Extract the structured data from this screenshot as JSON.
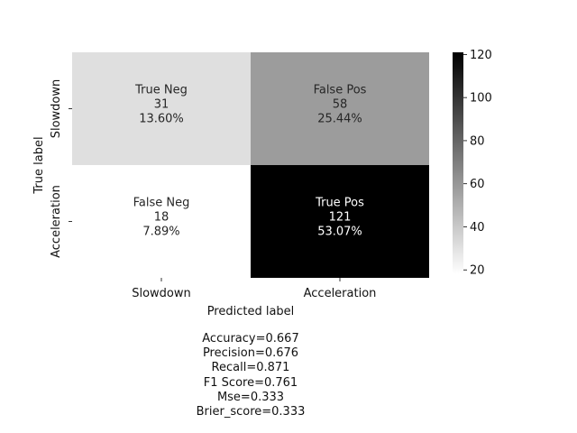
{
  "chart_data": {
    "type": "heatmap",
    "x_categories": [
      "Slowdown",
      "Acceleration"
    ],
    "y_categories": [
      "Slowdown",
      "Acceleration"
    ],
    "cells": [
      [
        {
          "label": "True Neg",
          "value": 31,
          "percent": "13.60%"
        },
        {
          "label": "False Pos",
          "value": 58,
          "percent": "25.44%"
        }
      ],
      [
        {
          "label": "False Neg",
          "value": 18,
          "percent": "7.89%"
        },
        {
          "label": "True Pos",
          "value": 121,
          "percent": "53.07%"
        }
      ]
    ],
    "xlabel": "Predicted label",
    "ylabel": "True label",
    "colorbar": {
      "min": 18,
      "max": 121,
      "ticks": [
        20,
        40,
        60,
        80,
        100,
        120
      ],
      "colormap": "binary",
      "low_color": "#ffffff",
      "high_color": "#000000"
    }
  },
  "stats": [
    "Accuracy=0.667",
    "Precision=0.676",
    "Recall=0.871",
    "F1 Score=0.761",
    "Mse=0.333",
    "Brier_score=0.333"
  ]
}
